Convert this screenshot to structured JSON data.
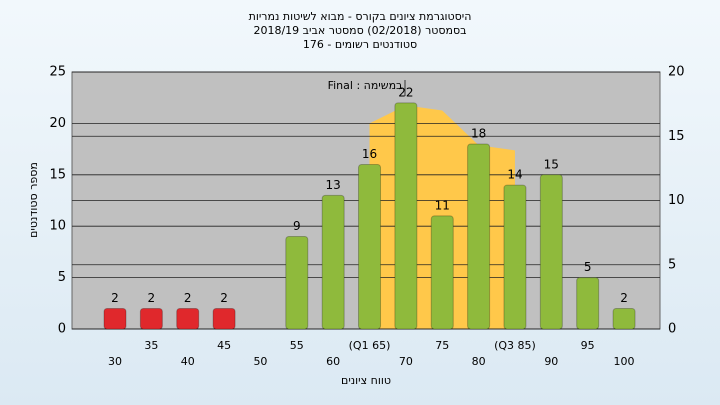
{
  "chart_data": {
    "type": "bar",
    "title": [
      "היסטוגרמת ציונים בקורס - מבוא לשיטות נמריות",
      "בסמסטר  (02/2018)  סמסטר אביב 2018/19",
      "סטודנטים רשומים - 176"
    ],
    "x_label": "טווח ציונים",
    "y_label": "מספר סטודנטים",
    "annotation": "במשימה : Final",
    "categories": [
      "30",
      "35",
      "40",
      "45",
      "50",
      "55",
      "60",
      "(Q1 65)",
      "70",
      "75",
      "80",
      "(Q3 85)",
      "90",
      "95",
      "100"
    ],
    "values": [
      2,
      2,
      2,
      2,
      null,
      9,
      13,
      16,
      22,
      11,
      18,
      14,
      15,
      5,
      2
    ],
    "colors": [
      "#e0282c",
      "#e0282c",
      "#e0282c",
      "#e0282c",
      "#e0282c",
      "#8fba3c",
      "#8fba3c",
      "#8fba3c",
      "#8fba3c",
      "#8fba3c",
      "#8fba3c",
      "#8fba3c",
      "#8fba3c",
      "#8fba3c",
      "#8fba3c"
    ],
    "area": {
      "color": "#ffc84a",
      "axis": "y2",
      "values": [
        null,
        null,
        null,
        null,
        null,
        null,
        null,
        16,
        17.4,
        17,
        14.3,
        13.9,
        null,
        null,
        null
      ]
    },
    "ylim": [
      0,
      25
    ],
    "yticks": [
      0,
      5,
      10,
      15,
      20,
      25
    ],
    "y2lim": [
      0,
      20
    ],
    "y2ticks": [
      0,
      5,
      10,
      15,
      20
    ],
    "grid": true
  }
}
